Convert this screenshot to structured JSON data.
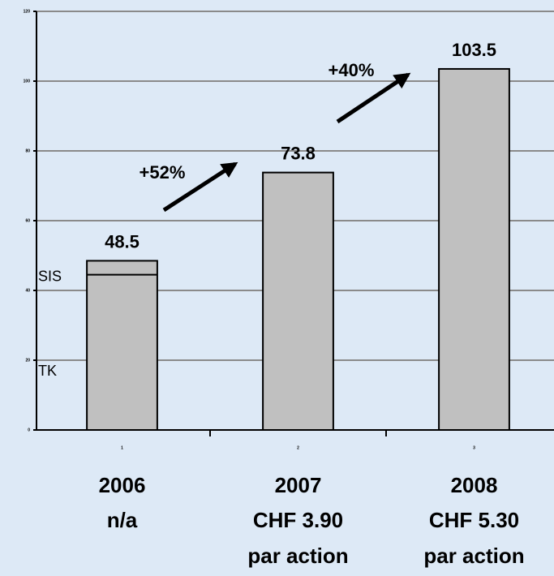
{
  "chart_data": {
    "type": "bar",
    "categories": [
      "2006",
      "2007",
      "2008"
    ],
    "category_notes": [
      [
        "n/a"
      ],
      [
        "CHF 3.90",
        "par action"
      ],
      [
        "CHF 5.30",
        "par action"
      ]
    ],
    "values": [
      48.5,
      73.8,
      103.5
    ],
    "color": "#c0c0c0",
    "split": {
      "index": 0,
      "value": 44.5,
      "labels": [
        "SIS",
        "TK"
      ]
    },
    "annotations": [
      "+52%",
      "+40%"
    ],
    "xlim": [
      0.5,
      3.5
    ],
    "xticks": [
      1,
      2,
      3
    ],
    "ylim": [
      0,
      120
    ],
    "yticks": [
      0,
      20,
      40,
      60,
      80,
      100,
      120
    ],
    "grid": true
  }
}
